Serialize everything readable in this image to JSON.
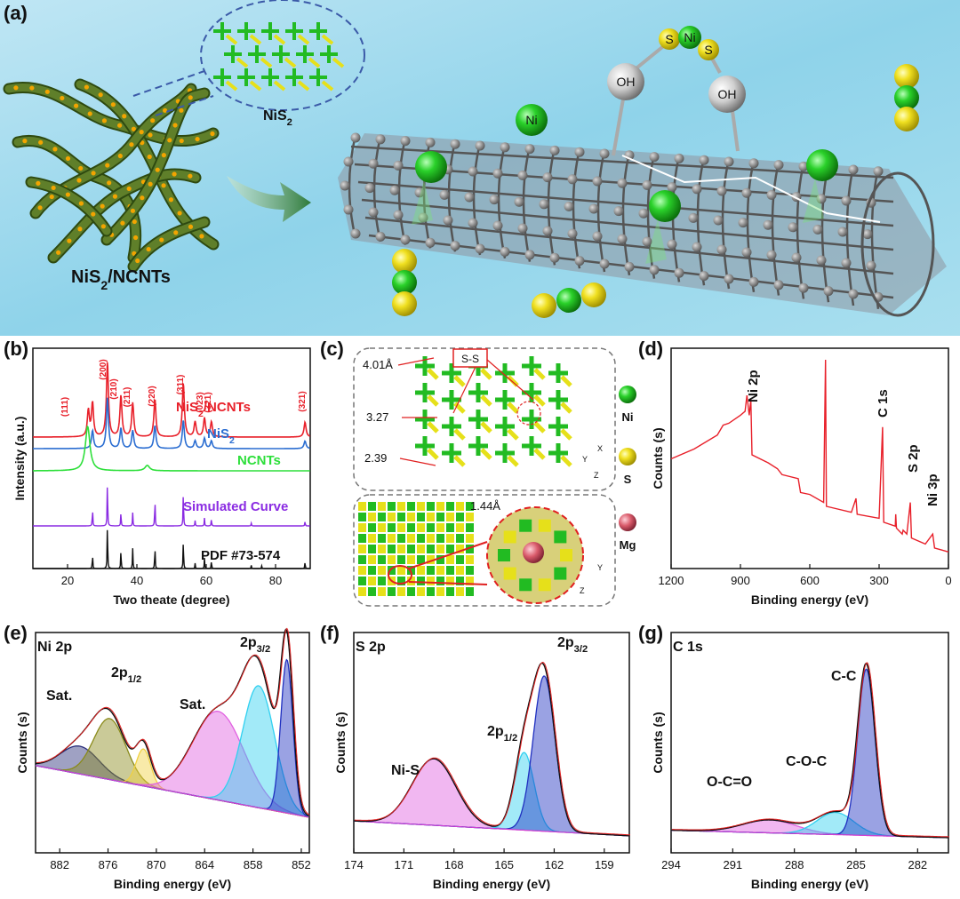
{
  "panel_labels": {
    "a": "(a)",
    "b": "(b)",
    "c": "(c)",
    "d": "(d)",
    "e": "(e)",
    "f": "(f)",
    "g": "(g)"
  },
  "schematic": {
    "material_label": "NiS2/NCNTs",
    "crystal_label": "NiS2",
    "atom_labels": {
      "oh_left": "OH",
      "oh_right": "OH",
      "ni": "Ni",
      "s_left": "S",
      "ni_center": "Ni",
      "s_right": "S"
    }
  },
  "structure_panel": {
    "bond_box_label": "S-S",
    "distances": [
      "4.01Å",
      "3.27",
      "2.39",
      "1.44Å"
    ],
    "legend": [
      "Ni",
      "S",
      "Mg"
    ],
    "axes_top": [
      "X",
      "Y",
      "Z"
    ],
    "axes_bottom": [
      "Y",
      "Z"
    ],
    "colors": {
      "Ni": "#22bb22",
      "S": "#e6e01a",
      "Mg": "#d95a6a"
    }
  },
  "chart_data": [
    {
      "id": "b",
      "type": "line",
      "xlabel": "Two theate (degree)",
      "ylabel": "Intensity (a.u.)",
      "xlim": [
        10,
        90
      ],
      "x_ticks": [
        20,
        40,
        60,
        80
      ],
      "series": [
        {
          "name": "NiS2/NCNTs",
          "color": "#e8202a",
          "peaks": [
            [
              26,
              0.35
            ],
            [
              27.2,
              0.45
            ],
            [
              31.5,
              1.0
            ],
            [
              35.4,
              0.55
            ],
            [
              38.8,
              0.45
            ],
            [
              45.2,
              0.5
            ],
            [
              53.4,
              0.72
            ],
            [
              56.8,
              0.2
            ],
            [
              59.5,
              0.25
            ],
            [
              61.5,
              0.2
            ],
            [
              88.5,
              0.2
            ]
          ]
        },
        {
          "name": "NiS2",
          "color": "#2a6dd1",
          "peaks": [
            [
              27.2,
              0.35
            ],
            [
              31.5,
              1.0
            ],
            [
              35.4,
              0.4
            ],
            [
              38.8,
              0.35
            ],
            [
              45.2,
              0.45
            ],
            [
              53.4,
              0.55
            ],
            [
              56.8,
              0.15
            ],
            [
              59.5,
              0.2
            ],
            [
              61.5,
              0.15
            ],
            [
              88.5,
              0.15
            ]
          ]
        },
        {
          "name": "NCNTs",
          "color": "#2ddf3a",
          "peaks": [
            [
              25.8,
              1.0
            ],
            [
              43,
              0.12
            ]
          ]
        },
        {
          "name": "Simulated Curve",
          "color": "#8a2be2",
          "peaks": [
            [
              27.2,
              0.35
            ],
            [
              31.5,
              1.0
            ],
            [
              35.4,
              0.3
            ],
            [
              38.8,
              0.25
            ],
            [
              45.2,
              0.55
            ],
            [
              53.4,
              0.75
            ],
            [
              56.8,
              0.1
            ],
            [
              59.5,
              0.15
            ],
            [
              61.5,
              0.15
            ],
            [
              73,
              0.05
            ],
            [
              88.5,
              0.1
            ]
          ]
        },
        {
          "name": "PDF #73-574",
          "color": "#111111",
          "peaks": [
            [
              27.2,
              0.28
            ],
            [
              31.5,
              1.0
            ],
            [
              35.4,
              0.4
            ],
            [
              38.8,
              0.38
            ],
            [
              45.2,
              0.45
            ],
            [
              53.4,
              0.62
            ],
            [
              56.8,
              0.1
            ],
            [
              59.5,
              0.2
            ],
            [
              61.5,
              0.16
            ],
            [
              73,
              0.06
            ],
            [
              76,
              0.05
            ],
            [
              88.5,
              0.14
            ]
          ]
        }
      ],
      "annotations": [
        "(111)",
        "(200)",
        "(210)",
        "(211)",
        "(220)",
        "(311)",
        "(023)",
        "(321)",
        "(321)"
      ]
    },
    {
      "id": "d",
      "type": "line",
      "xlabel": "Binding energy (eV)",
      "ylabel": "Counts (s)",
      "xlim": [
        1200,
        0
      ],
      "x_ticks": [
        1200,
        900,
        600,
        300,
        0
      ],
      "peak_labels": [
        "Ni 2p",
        "C 1s",
        "S 2p",
        "Ni 3p"
      ],
      "color": "#e8202a",
      "points": [
        [
          1200,
          0.5
        ],
        [
          1100,
          0.55
        ],
        [
          1000,
          0.62
        ],
        [
          975,
          0.67
        ],
        [
          950,
          0.68
        ],
        [
          900,
          0.72
        ],
        [
          880,
          0.74
        ],
        [
          872,
          0.82
        ],
        [
          862,
          0.72
        ],
        [
          855,
          0.8
        ],
        [
          850,
          0.52
        ],
        [
          780,
          0.48
        ],
        [
          740,
          0.45
        ],
        [
          720,
          0.42
        ],
        [
          650,
          0.4
        ],
        [
          640,
          0.33
        ],
        [
          600,
          0.32
        ],
        [
          540,
          0.28
        ],
        [
          532,
          1.0
        ],
        [
          528,
          0.26
        ],
        [
          420,
          0.23
        ],
        [
          400,
          0.3
        ],
        [
          395,
          0.22
        ],
        [
          300,
          0.2
        ],
        [
          285,
          0.66
        ],
        [
          280,
          0.18
        ],
        [
          230,
          0.16
        ],
        [
          228,
          0.22
        ],
        [
          225,
          0.15
        ],
        [
          200,
          0.12
        ],
        [
          196,
          0.14
        ],
        [
          180,
          0.12
        ],
        [
          165,
          0.28
        ],
        [
          160,
          0.1
        ],
        [
          100,
          0.07
        ],
        [
          68,
          0.12
        ],
        [
          60,
          0.05
        ],
        [
          30,
          0.04
        ],
        [
          0,
          0.03
        ]
      ]
    },
    {
      "id": "e",
      "type": "line",
      "title": "Ni 2p",
      "xlabel": "Binding energy (eV)",
      "ylabel": "Counts (s)",
      "xlim": [
        885,
        851
      ],
      "x_ticks": [
        882,
        876,
        870,
        864,
        858,
        852
      ],
      "peak_labels": [
        "Sat.",
        "2p1/2",
        "Sat.",
        "2p3/2"
      ],
      "components": [
        {
          "center": 879.5,
          "height": 0.15,
          "width": 2.4,
          "color": "#2a2e7a"
        },
        {
          "center": 875.8,
          "height": 0.33,
          "width": 2.0,
          "color": "#8a8a1a"
        },
        {
          "center": 871.6,
          "height": 0.2,
          "width": 0.9,
          "color": "#f0d040"
        },
        {
          "center": 862.3,
          "height": 0.48,
          "width": 3.2,
          "color": "#e060e0"
        },
        {
          "center": 857.3,
          "height": 0.66,
          "width": 2.0,
          "color": "#30d0f0"
        },
        {
          "center": 853.8,
          "height": 0.83,
          "width": 0.75,
          "color": "#2030c0"
        }
      ],
      "background": {
        "start": 0.4,
        "end": 0.12
      }
    },
    {
      "id": "f",
      "type": "line",
      "title": "S 2p",
      "xlabel": "Binding energy (eV)",
      "ylabel": "Counts (s)",
      "xlim": [
        174,
        157.5
      ],
      "x_ticks": [
        174,
        171,
        168,
        165,
        162,
        159
      ],
      "peak_labels": [
        "Ni-S",
        "2p1/2",
        "2p3/2"
      ],
      "components": [
        {
          "center": 169.2,
          "height": 0.36,
          "width": 1.3,
          "color": "#e060e0"
        },
        {
          "center": 163.8,
          "height": 0.42,
          "width": 0.6,
          "color": "#30d0f0"
        },
        {
          "center": 162.6,
          "height": 0.84,
          "width": 0.65,
          "color": "#2030c0"
        }
      ],
      "background": {
        "start": 0.1,
        "end": 0.02
      }
    },
    {
      "id": "g",
      "type": "line",
      "title": "C 1s",
      "xlabel": "Binding energy (eV)",
      "ylabel": "Counts (s)",
      "xlim": [
        294,
        280.5
      ],
      "x_ticks": [
        294,
        291,
        288,
        285,
        282
      ],
      "peak_labels": [
        "O-C=O",
        "C-O-C",
        "C-C"
      ],
      "components": [
        {
          "center": 289.2,
          "height": 0.07,
          "width": 1.3,
          "color": "#e060e0"
        },
        {
          "center": 286.0,
          "height": 0.12,
          "width": 0.9,
          "color": "#30d0f0"
        },
        {
          "center": 284.5,
          "height": 0.9,
          "width": 0.42,
          "color": "#2030c0"
        }
      ],
      "background": {
        "start": 0.05,
        "end": 0.01
      }
    }
  ]
}
